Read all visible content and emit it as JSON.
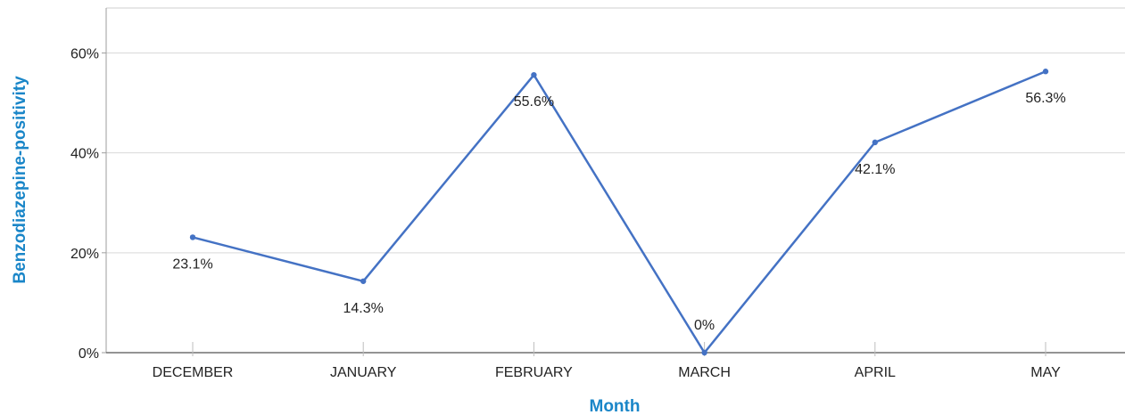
{
  "chart_data": {
    "type": "line",
    "categories": [
      "DECEMBER",
      "JANUARY",
      "FEBRUARY",
      "MARCH",
      "APRIL",
      "MAY"
    ],
    "series": [
      {
        "values": [
          23.1,
          14.3,
          55.6,
          0,
          42.1,
          56.3
        ]
      }
    ],
    "data_labels": [
      "23.1%",
      "14.3%",
      "55.6%",
      "0%",
      "42.1%",
      "56.3%"
    ],
    "xlabel": "Month",
    "ylabel": "Benzodiazepine-positivity",
    "ylim": [
      0,
      69
    ],
    "yticks": [
      0,
      20,
      40,
      60
    ],
    "ytick_labels": [
      "0%",
      "20%",
      "40%",
      "60%"
    ],
    "grid": "horizontal",
    "line_color": "#4472C4",
    "axis_title_color": "#1A86C8"
  }
}
